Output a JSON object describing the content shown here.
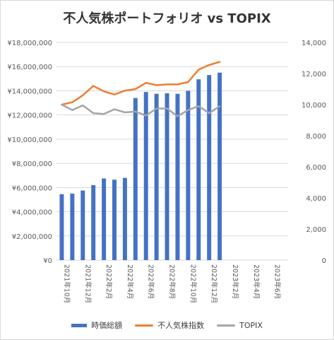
{
  "title": "不人気株ポートフォリオ vs TOPIX",
  "colors": {
    "bar": "#4472c4",
    "line1": "#ed7d31",
    "line2": "#a5a5a5",
    "grid": "#d9d9d9",
    "axis_text": "#595959"
  },
  "legend": [
    {
      "label": "時価総額",
      "kind": "bar",
      "color": "#4472c4"
    },
    {
      "label": "不人気株指数",
      "kind": "line",
      "color": "#ed7d31"
    },
    {
      "label": "TOPIX",
      "kind": "line",
      "color": "#a5a5a5"
    }
  ],
  "chart_data": {
    "type": "bar",
    "title": "不人気株ポートフォリオ vs TOPIX",
    "grid": true,
    "legend_position": "bottom",
    "x_tick_labels": [
      "2021年10月",
      "2021年12月",
      "2022年2月",
      "2022年4月",
      "2022年6月",
      "2022年8月",
      "2022年10月",
      "2022年12月",
      "2023年2月",
      "2023年4月",
      "2023年6月"
    ],
    "left_axis": {
      "ylim": [
        0,
        18000000
      ],
      "ticks": [
        "¥0",
        "¥2,000,000",
        "¥4,000,000",
        "¥6,000,000",
        "¥8,000,000",
        "¥10,000,000",
        "¥12,000,000",
        "¥14,000,000",
        "¥16,000,000",
        "¥18,000,000"
      ]
    },
    "right_axis": {
      "ylim": [
        0,
        14000
      ],
      "ticks": [
        "0",
        "2,000",
        "4,000",
        "6,000",
        "8,000",
        "10,000",
        "12,000",
        "14,000"
      ]
    },
    "n_slots": 22,
    "series": [
      {
        "name": "時価総額",
        "type": "bar",
        "axis": "left",
        "values": [
          5450000,
          5500000,
          5750000,
          6200000,
          6750000,
          6650000,
          6800000,
          13400000,
          13900000,
          13750000,
          13800000,
          13750000,
          14000000,
          14950000,
          15300000,
          15500000,
          null,
          null,
          null,
          null,
          null,
          null
        ]
      },
      {
        "name": "不人気株指数",
        "type": "line",
        "axis": "right",
        "values": [
          10000,
          10150,
          10600,
          11200,
          10850,
          10650,
          10900,
          11000,
          11400,
          11250,
          11300,
          11300,
          11450,
          12250,
          12550,
          12750,
          null,
          null,
          null,
          null,
          null,
          null
        ]
      },
      {
        "name": "TOPIX",
        "type": "line",
        "axis": "right",
        "values": [
          10000,
          9650,
          9950,
          9450,
          9400,
          9700,
          9500,
          9550,
          9300,
          9750,
          9750,
          9250,
          9650,
          9900,
          9450,
          9900,
          null,
          null,
          null,
          null,
          null,
          null
        ]
      }
    ]
  }
}
